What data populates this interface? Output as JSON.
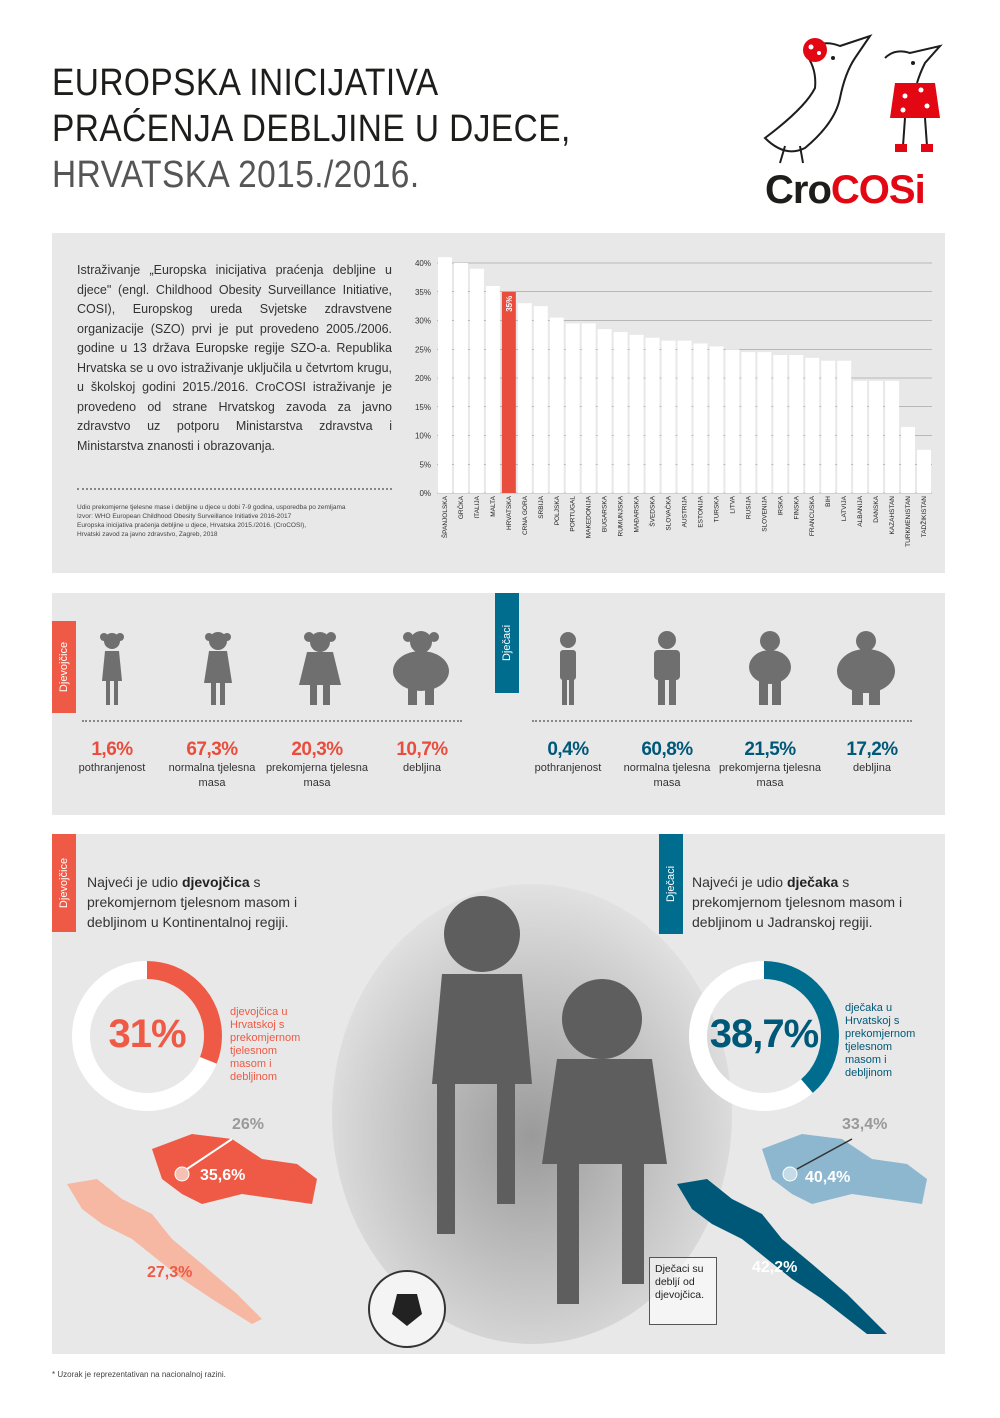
{
  "title": {
    "line1": "EUROPSKA INICIJATIVA",
    "line2": "PRAĆENJA DEBLJINE U DJECE,",
    "line3": "HRVATSKA 2015./2016."
  },
  "logo": {
    "text_a": "Cro",
    "text_b": "COSi"
  },
  "intro": {
    "text": "Istraživanje „Europska inicijativa praćenja debljine u djece\" (engl. Childhood Obesity Surveillance Initiative, COSI), Europskog ureda Svjetske zdravstvene organizacije (SZO) prvi je put provedeno 2005./2006. godine u 13 država Europske regije SZO-a. Republika Hrvatska se u ovo istraživanje uključila u četvrtom krugu, u školskoj godini 2015./2016. CroCOSI istraživanje je provedeno od strane Hrvatskog zavoda za javno zdravstvo uz potporu Ministarstva zdravstva i Ministarstva znanosti i obrazovanja.",
    "source_line1": "Udio prekomjerne tjelesne mase i debljine u djece u dobi 7-9 godina, usporedba po zemljama",
    "source_line2": "Izvor: WHO European Childhood Obesity Surveillance Initiative 2016-2017",
    "source_line3": "Europska inicijativa praćenja debljine u djece, Hrvatska 2015./2016. (CroCOSI),",
    "source_line4": "Hrvatski zavod za javno zdravstvo, Zagreb, 2018"
  },
  "chart_data": {
    "type": "bar",
    "categories": [
      "ŠPANJOLSKA",
      "GRČKA",
      "ITALIJA",
      "MALTA",
      "HRVATSKA",
      "CRNA GORA",
      "SRBIJA",
      "POLJSKA",
      "PORTUGAL",
      "MAKEDONIJA",
      "BUGARSKA",
      "RUMUNJSKA",
      "MAĐARSKA",
      "ŠVEDSKA",
      "SLOVAČKA",
      "AUSTRIJA",
      "ESTONIJA",
      "TURSKA",
      "LITVA",
      "RUSIJA",
      "SLOVENIJA",
      "IRSKA",
      "FINSKA",
      "FRANCUSKA",
      "BIH",
      "LATVIJA",
      "ALBANIJA",
      "DANSKA",
      "KAZAHSTAN",
      "TURKMENISTAN",
      "TADŽIKISTAN"
    ],
    "values": [
      41,
      40,
      39,
      36,
      35,
      33,
      32.5,
      30.5,
      29.5,
      29.5,
      28.5,
      28,
      27.5,
      27,
      26.5,
      26.5,
      26,
      25.5,
      25,
      24.5,
      24.5,
      24,
      24,
      23.5,
      23,
      23,
      19.5,
      19.5,
      19.5,
      11.5,
      7.5
    ],
    "highlight": "HRVATSKA",
    "highlight_label": "35%",
    "ylim": [
      0,
      40
    ],
    "yticks": [
      "0%",
      "5%",
      "10%",
      "15%",
      "20%",
      "25%",
      "30%",
      "35%",
      "40%"
    ],
    "highlight_color": "#e84d3d"
  },
  "girls": {
    "tag": "Djevojčice",
    "stats": [
      {
        "value": "1,6%",
        "label": "pothranjenost"
      },
      {
        "value": "67,3%",
        "label": "normalna tjelesna masa"
      },
      {
        "value": "20,3%",
        "label": "prekomjerna tjelesna masa"
      },
      {
        "value": "10,7%",
        "label": "debljina"
      }
    ],
    "headline_pre": "Najveći je udio ",
    "headline_bold": "djevojčica",
    "headline_post": " s prekomjernom tjelesnom masom i debljinom u Kontinentalnoj regiji.",
    "donut_value": "31%",
    "donut_fraction": 0.31,
    "donut_note": "djevojčica u Hrvatskoj s prekomjernom tjelesnom masom i debljinom",
    "map": {
      "zagreb": "26%",
      "continental": "35,6%",
      "adriatic": "27,3%"
    },
    "color": "#ee5a45"
  },
  "boys": {
    "tag": "Dječaci",
    "stats": [
      {
        "value": "0,4%",
        "label": "pothranjenost"
      },
      {
        "value": "60,8%",
        "label": "normalna tjelesna masa"
      },
      {
        "value": "21,5%",
        "label": "prekomjerna tjelesna masa"
      },
      {
        "value": "17,2%",
        "label": "debljina"
      }
    ],
    "headline_pre": "Najveći je udio ",
    "headline_bold": "dječaka",
    "headline_post": " s prekomjernom tjelesnom masom i debljinom u Jadranskoj regiji.",
    "donut_value": "38,7%",
    "donut_fraction": 0.387,
    "donut_note": "dječaka u Hrvatskoj s prekomjernom tjelesnom masom i debljinom",
    "map": {
      "zagreb": "33,4%",
      "continental": "40,4%",
      "adriatic": "42,2%"
    },
    "color": "#006d8f"
  },
  "photo_note": "Dječaci su debljí od djevojčica.",
  "footnote": "* Uzorak je reprezentativan na nacionalnoj razini."
}
